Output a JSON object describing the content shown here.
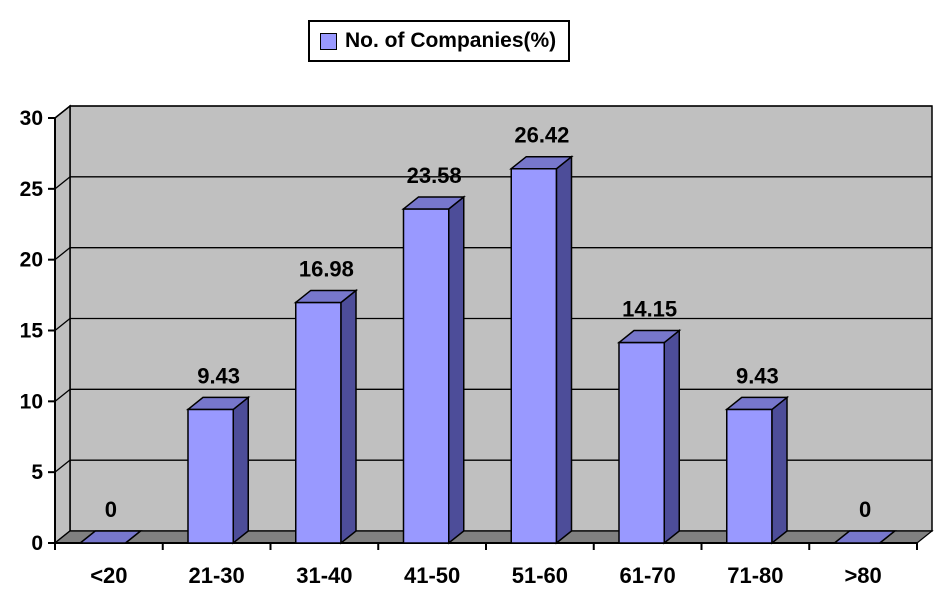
{
  "chart_data": {
    "type": "bar",
    "categories": [
      "<20",
      "21-30",
      "31-40",
      "41-50",
      "51-60",
      "61-70",
      "71-80",
      ">80"
    ],
    "series": [
      {
        "name": "No. of Companies(%)",
        "values": [
          0,
          9.43,
          16.98,
          23.58,
          26.42,
          14.15,
          9.43,
          0
        ]
      }
    ],
    "data_labels": [
      "0",
      "9.43",
      "16.98",
      "23.58",
      "26.42",
      "14.15",
      "9.43",
      "0"
    ],
    "title": "",
    "xlabel": "",
    "ylabel": "",
    "ylim": [
      0,
      30
    ],
    "yticks": [
      "0",
      "5",
      "10",
      "15",
      "20",
      "25",
      "30"
    ],
    "grid": true,
    "legend_position": "top-center",
    "style": "3d-column",
    "colors": {
      "bar_front": "#9999ff",
      "bar_side": "#4d4d99",
      "bar_top": "#7777cc",
      "plot_background": "#c0c0c0",
      "floor": "#808080"
    }
  }
}
